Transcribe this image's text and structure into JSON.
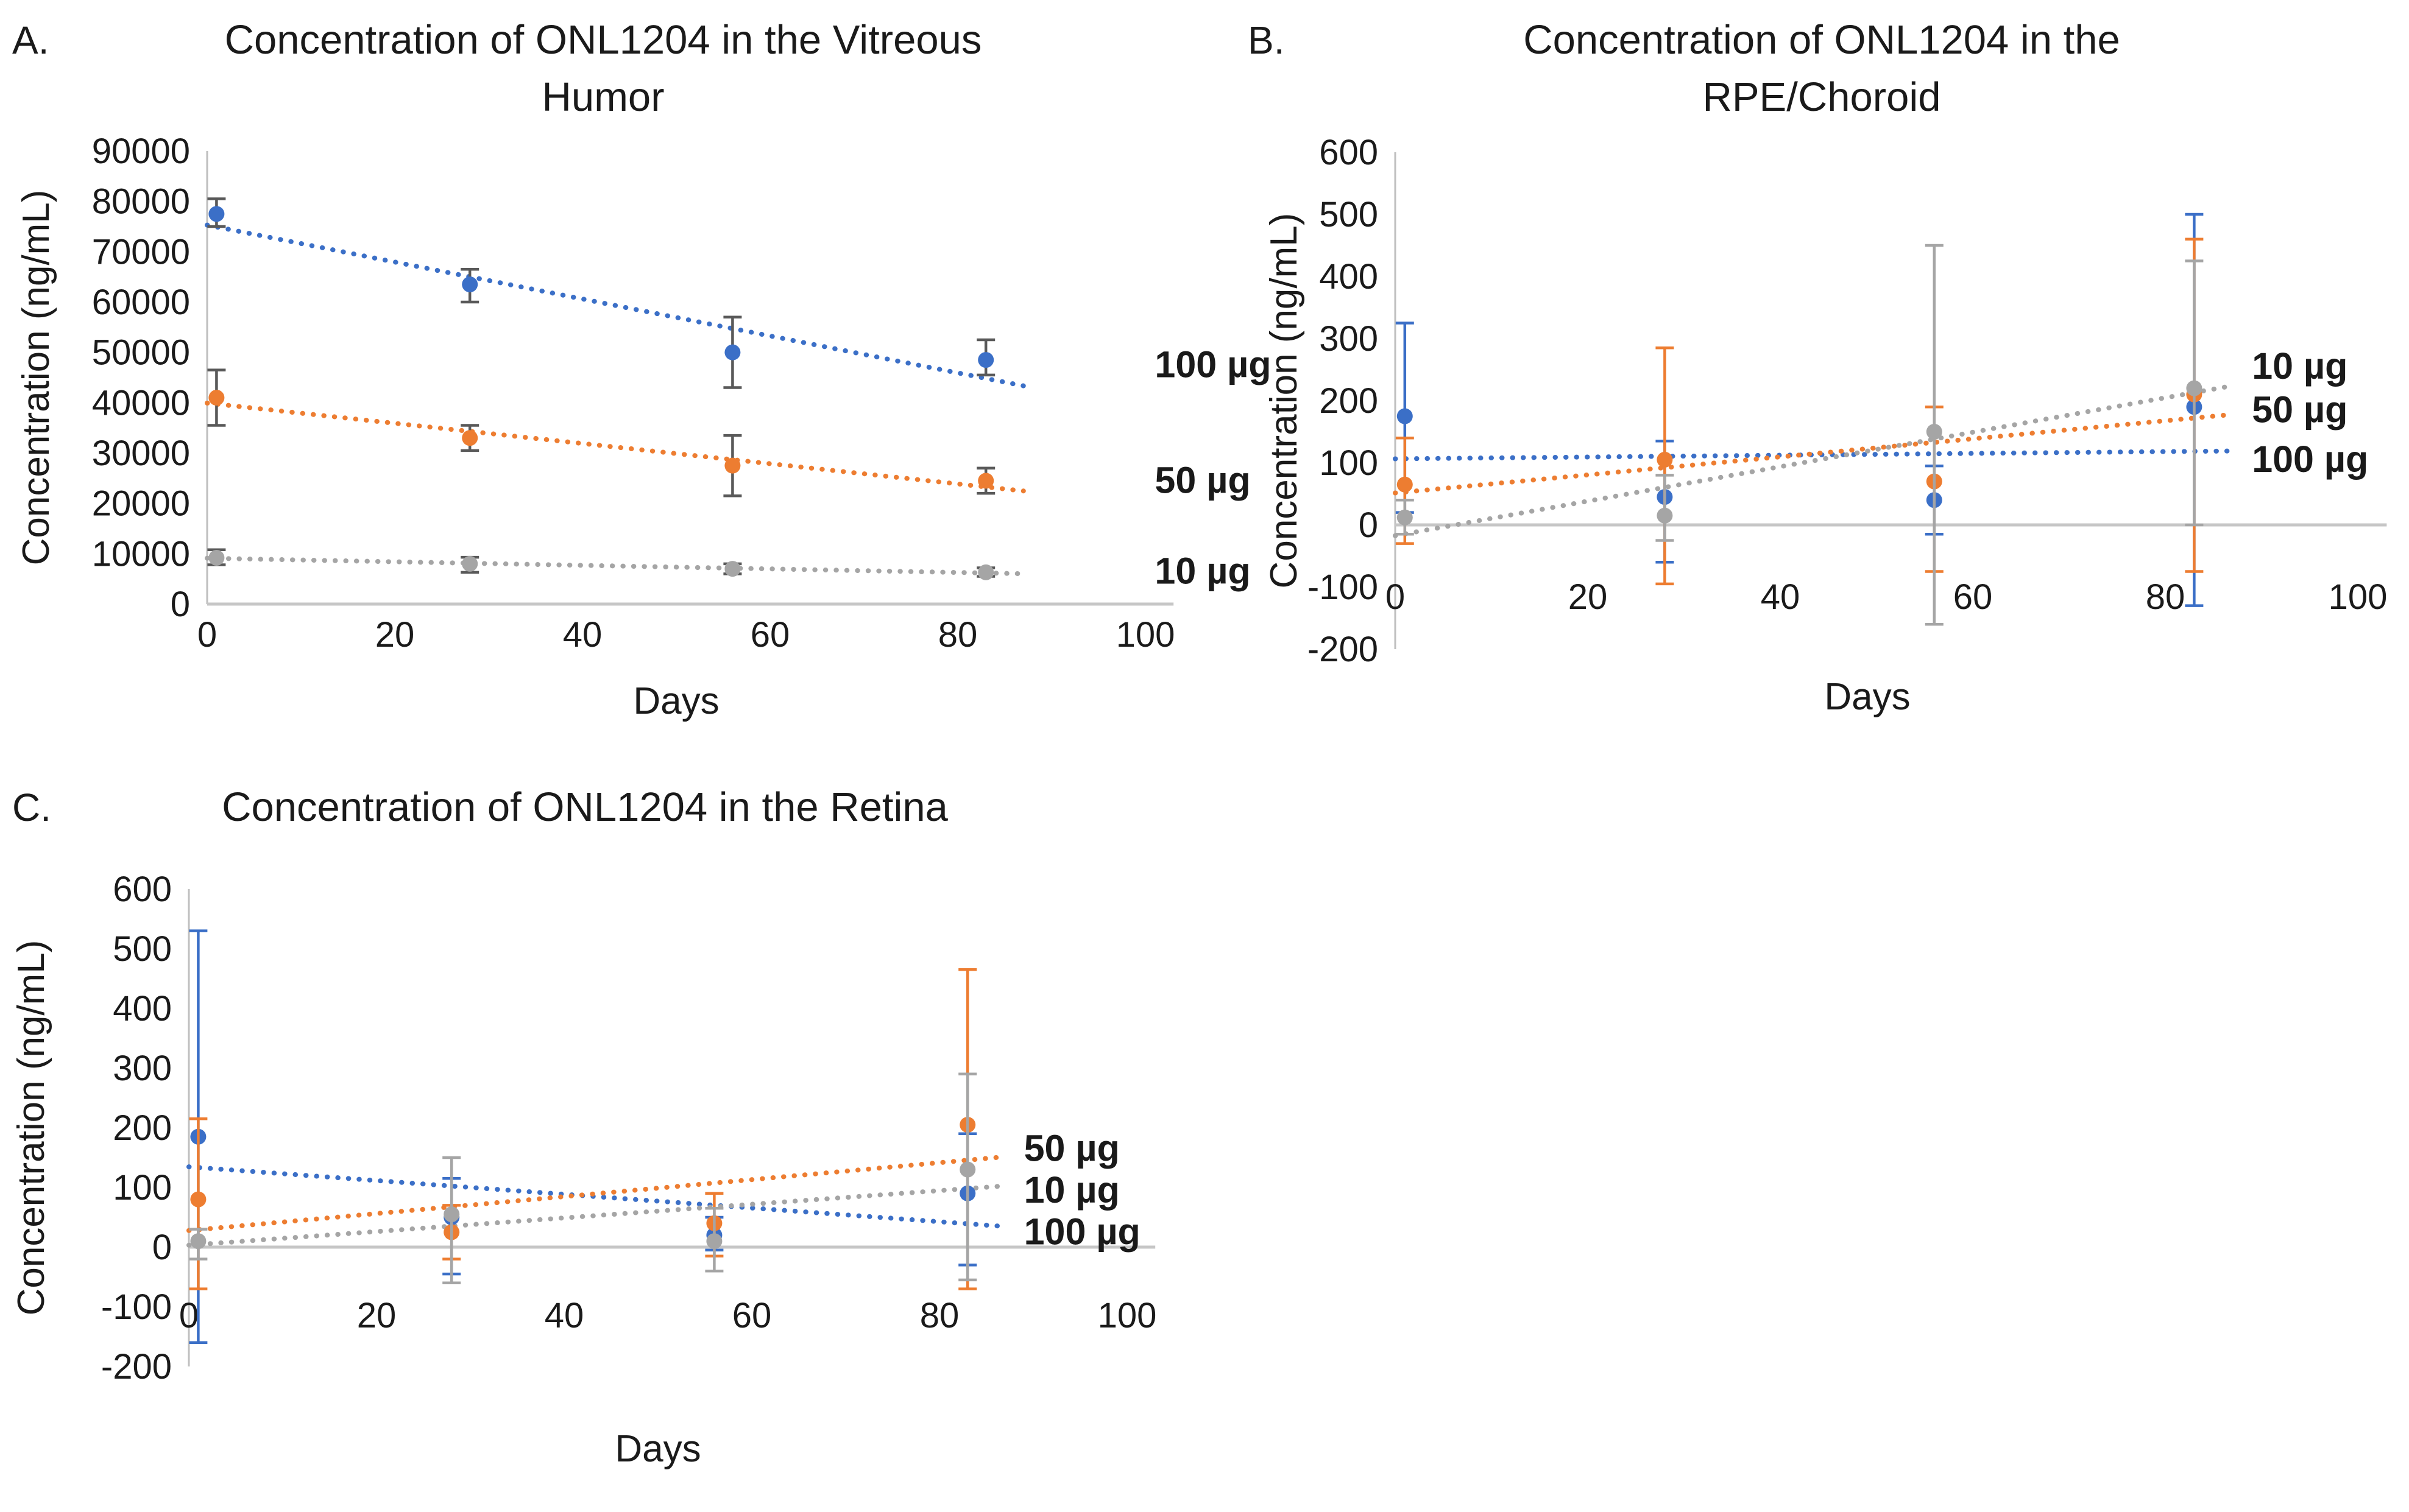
{
  "figure": {
    "background": "#ffffff",
    "description_visible_text_only": true
  },
  "chart_data": [
    {
      "id": "A",
      "type": "scatter",
      "panel_label": "A.",
      "title_lines": [
        "Concentration of ONL1204 in the Vitreous",
        "Humor"
      ],
      "xlabel": "Days",
      "ylabel": "Concentration (ng/mL)",
      "xlim": [
        0,
        100
      ],
      "ylim": [
        0,
        90000
      ],
      "x_ticks": [
        0,
        20,
        40,
        60,
        80,
        100
      ],
      "y_ticks": [
        0,
        10000,
        20000,
        30000,
        40000,
        50000,
        60000,
        70000,
        80000,
        90000
      ],
      "grid": false,
      "legend_position": "right-of-last-point",
      "trend_style": "dotted linear fit, day 0 to 87",
      "error_bar_color": "#595959",
      "x": [
        1,
        28,
        56,
        83
      ],
      "series": [
        {
          "name": "100 µg",
          "color": "#3B6FC7",
          "label_color": "#1C9AD6",
          "values": [
            77500,
            63500,
            50000,
            48500
          ],
          "err_lo": [
            75000,
            60000,
            43000,
            45500
          ],
          "err_hi": [
            80500,
            66500,
            57000,
            52500
          ],
          "label_at": {
            "x": 101,
            "y": 47500
          }
        },
        {
          "name": "50 µg",
          "color": "#ED7D31",
          "label_color": "#FFA32B",
          "values": [
            41000,
            33000,
            27500,
            24500
          ],
          "err_lo": [
            35500,
            30500,
            21500,
            22000
          ],
          "err_hi": [
            46500,
            35500,
            33500,
            27000
          ],
          "label_at": {
            "x": 101,
            "y": 24500
          }
        },
        {
          "name": "10 µg",
          "color": "#A5A5A5",
          "label_color": "#A6A6A6",
          "values": [
            9200,
            8000,
            7000,
            6300
          ],
          "err_lo": [
            7800,
            6300,
            6000,
            5500
          ],
          "err_hi": [
            10800,
            9300,
            8000,
            7200
          ],
          "label_at": {
            "x": 101,
            "y": 6500
          }
        }
      ]
    },
    {
      "id": "B",
      "type": "scatter",
      "panel_label": "B.",
      "title_lines": [
        "Concentration of ONL1204 in the",
        "RPE/Choroid"
      ],
      "xlabel": "Days",
      "ylabel": "Concentration (ng/mL)",
      "xlim": [
        0,
        100
      ],
      "ylim": [
        -200,
        600
      ],
      "x_ticks": [
        0,
        20,
        40,
        60,
        80,
        100
      ],
      "y_ticks": [
        -200,
        -100,
        0,
        100,
        200,
        300,
        400,
        500,
        600
      ],
      "grid": false,
      "legend_position": "right-of-last-point",
      "trend_style": "dotted linear fit, day 0 to 87",
      "error_bar_color": null,
      "x": [
        1,
        28,
        56,
        83
      ],
      "series": [
        {
          "name": "100 µg",
          "color": "#3B6FC7",
          "label_color": "#1C9AD6",
          "values": [
            175,
            45,
            40,
            190
          ],
          "err_lo": [
            20,
            -60,
            -15,
            -130
          ],
          "err_hi": [
            325,
            135,
            95,
            500
          ],
          "label_at": {
            "x": 89,
            "y": 105
          }
        },
        {
          "name": "50 µg",
          "color": "#ED7D31",
          "label_color": "#FFA32B",
          "values": [
            65,
            105,
            70,
            210
          ],
          "err_lo": [
            -30,
            -95,
            -75,
            -75
          ],
          "err_hi": [
            140,
            285,
            190,
            460
          ],
          "label_at": {
            "x": 89,
            "y": 185
          }
        },
        {
          "name": "10 µg",
          "color": "#A5A5A5",
          "label_color": "#A6A6A6",
          "values": [
            12,
            15,
            150,
            220
          ],
          "err_lo": [
            -15,
            -25,
            -160,
            0
          ],
          "err_hi": [
            40,
            80,
            450,
            425
          ],
          "label_at": {
            "x": 89,
            "y": 255
          }
        }
      ]
    },
    {
      "id": "C",
      "type": "scatter",
      "panel_label": "C.",
      "title_lines": [
        "Concentration of ONL1204 in the Retina"
      ],
      "xlabel": "Days",
      "ylabel": "Concentration (ng/mL)",
      "xlim": [
        0,
        100
      ],
      "ylim": [
        -200,
        600
      ],
      "x_ticks": [
        0,
        20,
        40,
        60,
        80,
        100
      ],
      "y_ticks": [
        -200,
        -100,
        0,
        100,
        200,
        300,
        400,
        500,
        600
      ],
      "grid": false,
      "legend_position": "right-of-last-point",
      "trend_style": "dotted linear fit, day 0 to 87",
      "error_bar_color": null,
      "x": [
        1,
        28,
        56,
        83
      ],
      "series": [
        {
          "name": "100 µg",
          "color": "#3B6FC7",
          "label_color": "#1C9AD6",
          "values": [
            185,
            50,
            20,
            90
          ],
          "err_lo": [
            -160,
            -45,
            -5,
            -30
          ],
          "err_hi": [
            530,
            115,
            50,
            190
          ],
          "label_at": {
            "x": 89,
            "y": 25
          }
        },
        {
          "name": "50 µg",
          "color": "#ED7D31",
          "label_color": "#FFA32B",
          "values": [
            80,
            25,
            40,
            205
          ],
          "err_lo": [
            -70,
            -20,
            -15,
            -70
          ],
          "err_hi": [
            215,
            70,
            90,
            465
          ],
          "label_at": {
            "x": 89,
            "y": 165
          }
        },
        {
          "name": "10 µg",
          "color": "#A5A5A5",
          "label_color": "#A6A6A6",
          "values": [
            10,
            55,
            10,
            130
          ],
          "err_lo": [
            -20,
            -60,
            -40,
            -55
          ],
          "err_hi": [
            30,
            150,
            65,
            290
          ],
          "label_at": {
            "x": 89,
            "y": 95
          }
        }
      ]
    }
  ],
  "axis_colors": {
    "axis_line": "#BFBFBF",
    "zero_line": "#C6C6C6",
    "tick_text": "#1a1a1a"
  }
}
